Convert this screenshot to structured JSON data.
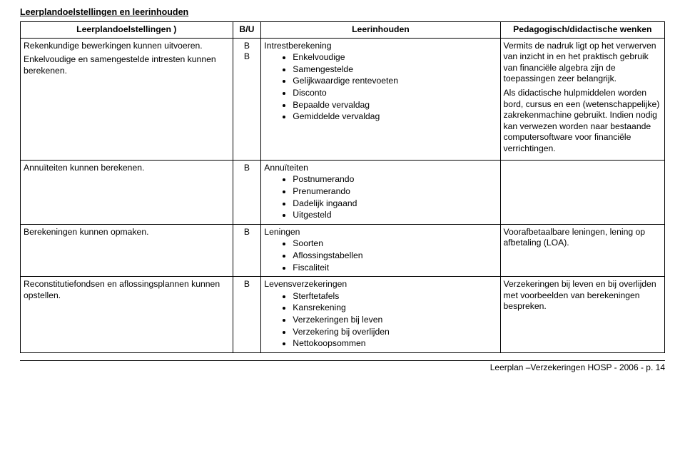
{
  "section_title": "Leerplandoelstellingen en leerinhouden",
  "headers": {
    "col1": "Leerplandoelstellingen )",
    "col2": "B/U",
    "col3": "Leerinhouden",
    "col4": "Pedagogisch/didactische wenken"
  },
  "row1": {
    "obj_a": "Rekenkundige bewerkingen kunnen uitvoeren.",
    "obj_b": "Enkelvoudige en samengestelde intresten kunnen berekenen.",
    "bu_a": "B",
    "bu_b": "B",
    "content_lead": "Intrestberekening",
    "content_items": [
      "Enkelvoudige",
      "Samengestelde",
      "Gelijkwaardige rentevoeten",
      "Disconto",
      "Bepaalde vervaldag",
      "Gemiddelde vervaldag"
    ],
    "ped_p1": "Vermits de nadruk ligt op het verwerven van inzicht in en het praktisch gebruik van financiële algebra zijn de toepassingen zeer belangrijk.",
    "ped_p2": "Als didactische hulpmiddelen worden bord, cursus en een (wetenschappelijke) zakrekenmachine gebruikt. Indien nodig kan verwezen worden naar bestaande computersoftware voor financiële verrichtingen."
  },
  "row2": {
    "obj": "Annuïteiten kunnen berekenen.",
    "bu": "B",
    "content_lead": "Annuïteiten",
    "content_items": [
      "Postnumerando",
      "Prenumerando",
      "Dadelijk ingaand",
      "Uitgesteld"
    ]
  },
  "row3": {
    "obj": "Berekeningen kunnen opmaken.",
    "bu": "B",
    "content_lead": "Leningen",
    "content_items": [
      "Soorten",
      "Aflossingstabellen",
      "Fiscaliteit"
    ],
    "ped": "Voorafbetaalbare leningen, lening op afbetaling (LOA)."
  },
  "row4": {
    "obj": "Reconstitutiefondsen en aflossingsplannen kunnen opstellen.",
    "bu": "B",
    "content_lead": "Levensverzekeringen",
    "content_items": [
      "Sterftetafels",
      "Kansrekening",
      "Verzekeringen bij leven",
      "Verzekering bij overlijden",
      "Nettokoopsommen"
    ],
    "ped": "Verzekeringen bij leven en bij overlijden met voorbeelden van berekeningen bespreken."
  },
  "footer": "Leerplan –Verzekeringen HOSP  - 2006 - p. 14"
}
